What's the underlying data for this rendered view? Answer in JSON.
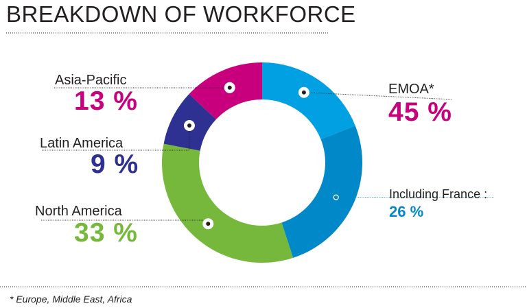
{
  "title": "BREAKDOWN OF WORKFORCE",
  "footnote": "* Europe, Middle East, Africa",
  "colors": {
    "emoa": "#00a0e3",
    "france": "#0088c9",
    "north_america": "#76b83b",
    "latin_america": "#2e3192",
    "asia_pacific": "#c9007e"
  },
  "chart_data": {
    "type": "pie",
    "style": "donut",
    "title": "BREAKDOWN OF WORKFORCE",
    "slices": [
      {
        "label": "EMOA*",
        "value": 45,
        "display": "45 %",
        "color": "#00a0e3",
        "sub": {
          "label": "Including France :",
          "value": 26,
          "display": "26 %",
          "color": "#0088c9"
        }
      },
      {
        "label": "North America",
        "value": 33,
        "display": "33 %",
        "color": "#76b83b"
      },
      {
        "label": "Latin America",
        "value": 9,
        "display": "9 %",
        "color": "#2e3192"
      },
      {
        "label": "Asia-Pacific",
        "value": 13,
        "display": "13 %",
        "color": "#c9007e"
      }
    ]
  }
}
